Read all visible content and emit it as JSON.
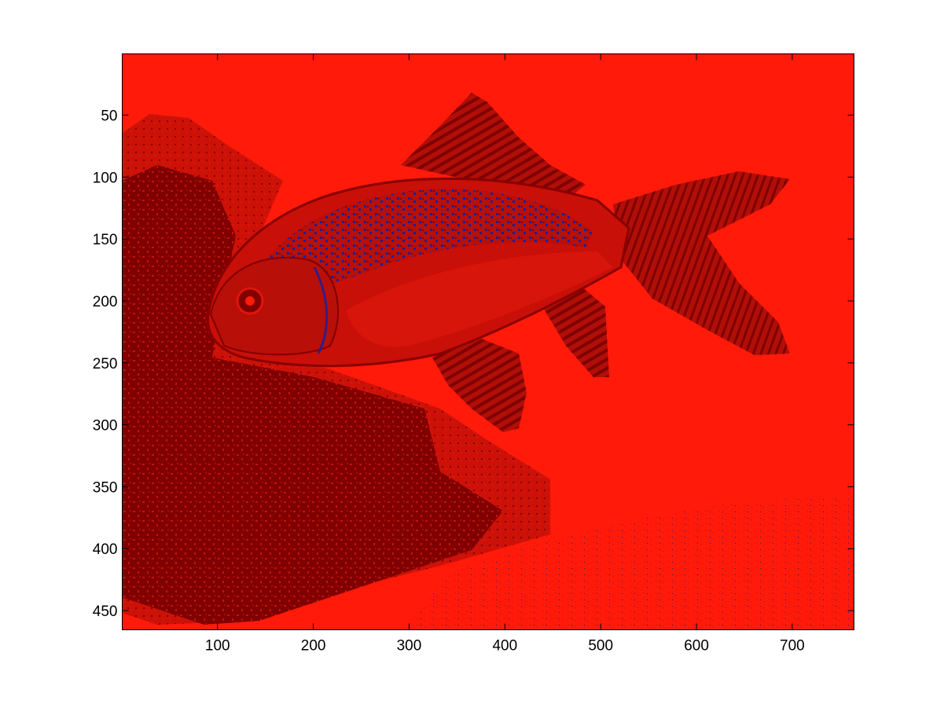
{
  "chart_data": {
    "type": "heatmap",
    "title": "",
    "xlabel": "",
    "ylabel": "",
    "x_range": [
      0.5,
      764.5
    ],
    "y_range": [
      0.5,
      465.5
    ],
    "y_direction": "reversed",
    "x_ticks": [
      100,
      200,
      300,
      400,
      500,
      600,
      700
    ],
    "y_ticks": [
      50,
      100,
      150,
      200,
      250,
      300,
      350,
      400,
      450
    ],
    "x_tick_labels": [
      "100",
      "200",
      "300",
      "400",
      "500",
      "600",
      "700"
    ],
    "y_tick_labels": [
      "50",
      "100",
      "150",
      "200",
      "250",
      "300",
      "350",
      "400",
      "450"
    ],
    "grid": false,
    "colormap_visible": {
      "background": "#FF1A0A",
      "dark": "#800000",
      "mid": "#C40F0F",
      "highlight": "#1020A8"
    },
    "image_content": "goldfish"
  }
}
